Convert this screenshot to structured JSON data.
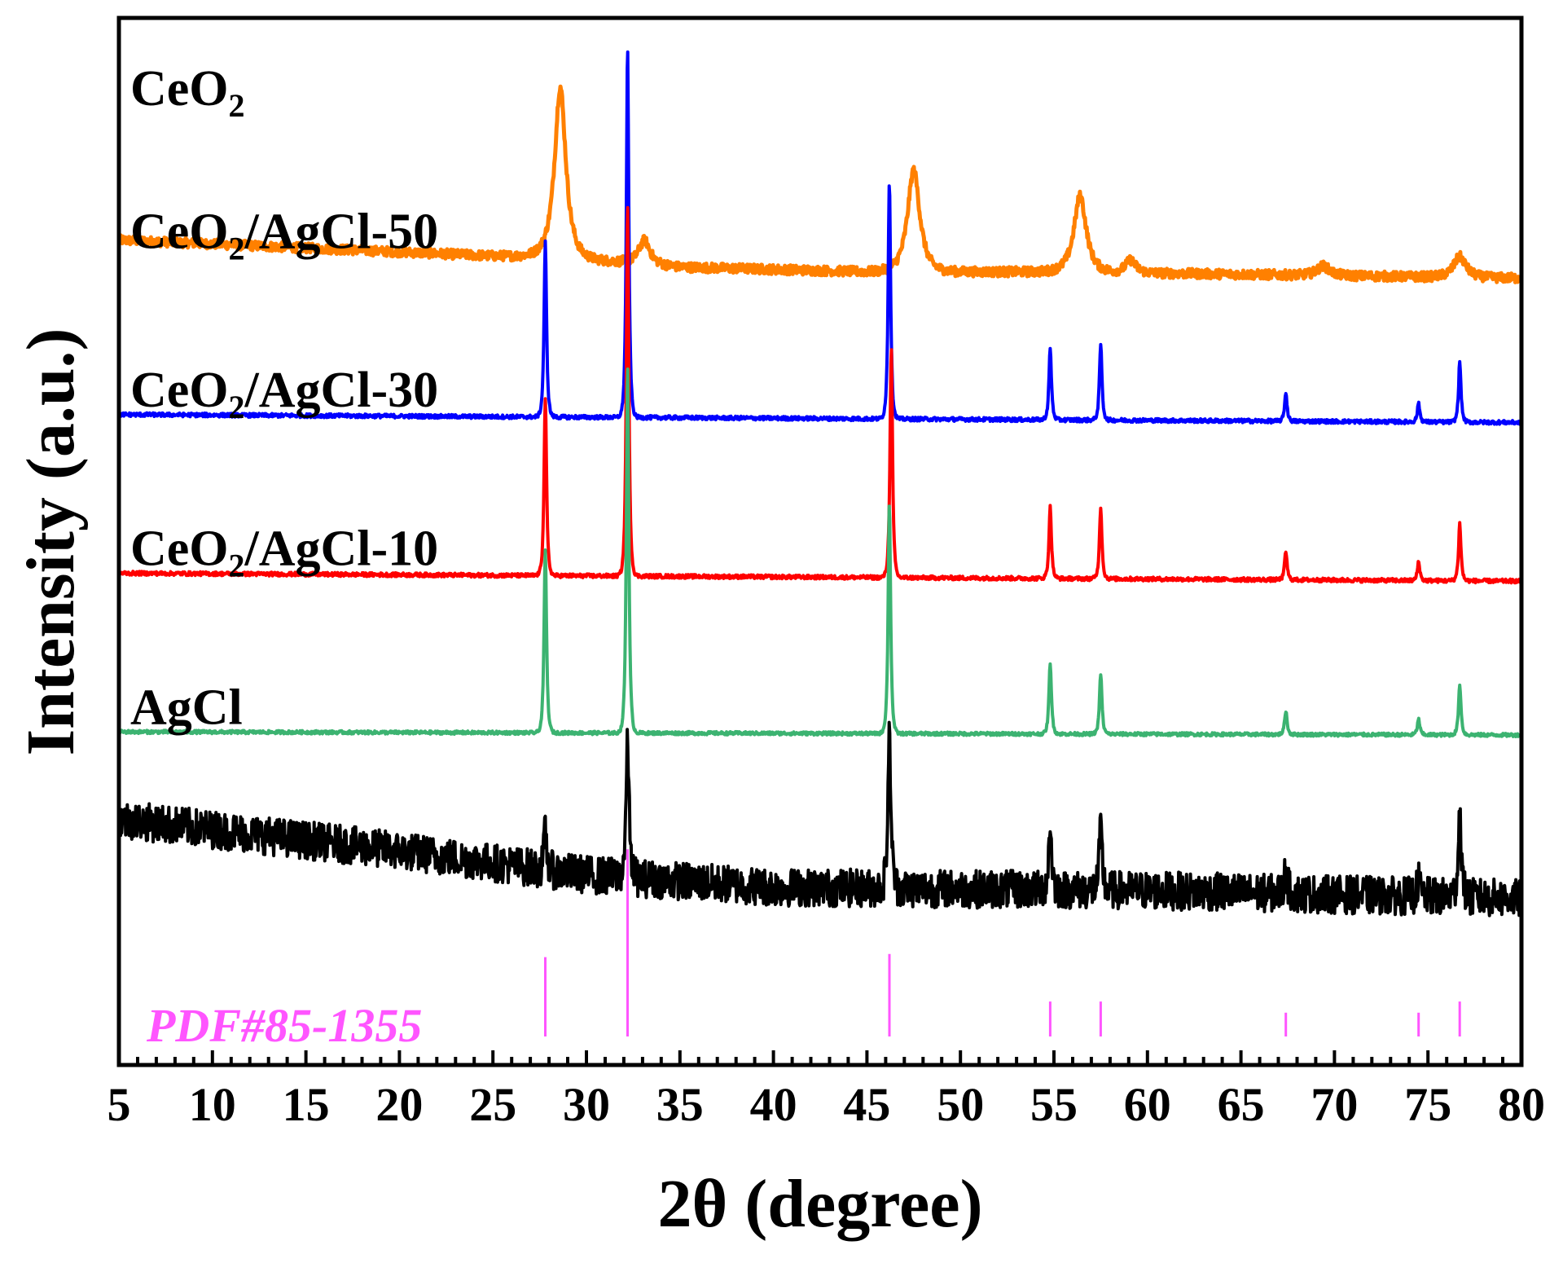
{
  "chart_data": {
    "type": "line",
    "xlabel": "2θ (degree)",
    "ylabel": "Intensity (a.u.)",
    "xlim": [
      5,
      80
    ],
    "x_ticks": [
      5,
      10,
      15,
      20,
      25,
      30,
      35,
      40,
      45,
      50,
      55,
      60,
      65,
      70,
      75,
      80
    ],
    "y_ticks_shown": false,
    "grid": false,
    "legend": "none",
    "series": [
      {
        "name": "CeO2",
        "label_main": "CeO",
        "label_sub": "2",
        "label_rest": "",
        "color": "#ff8000",
        "baseline": [
          [
            5,
            3.1
          ],
          [
            25,
            3.0
          ],
          [
            28,
            3.0
          ],
          [
            35,
            2.93
          ],
          [
            45,
            2.9
          ],
          [
            55,
            2.9
          ],
          [
            80,
            2.86
          ]
        ],
        "peaks": [
          {
            "center": 28.6,
            "height": 1.07,
            "width": 0.55
          },
          {
            "center": 33.1,
            "height": 0.15,
            "width": 0.55
          },
          {
            "center": 47.5,
            "height": 0.64,
            "width": 0.6
          },
          {
            "center": 56.4,
            "height": 0.48,
            "width": 0.6
          },
          {
            "center": 59.1,
            "height": 0.08,
            "width": 0.5
          },
          {
            "center": 69.4,
            "height": 0.06,
            "width": 0.6
          },
          {
            "center": 76.7,
            "height": 0.13,
            "width": 0.6
          }
        ],
        "noise": 0.03
      },
      {
        "name": "CeO2/AgCl-50",
        "label_main": "CeO",
        "label_sub": "2",
        "label_rest": "/AgCl-50",
        "color": "#0000ff",
        "baseline": [
          [
            5,
            2.0
          ],
          [
            80,
            1.95
          ]
        ],
        "peaks": [
          {
            "center": 27.8,
            "height": 1.1,
            "width": 0.12
          },
          {
            "center": 32.2,
            "height": 2.33,
            "width": 0.12
          },
          {
            "center": 46.2,
            "height": 1.5,
            "width": 0.12
          },
          {
            "center": 54.8,
            "height": 0.45,
            "width": 0.12
          },
          {
            "center": 57.5,
            "height": 0.48,
            "width": 0.12
          },
          {
            "center": 67.4,
            "height": 0.18,
            "width": 0.12
          },
          {
            "center": 74.5,
            "height": 0.12,
            "width": 0.12
          },
          {
            "center": 76.7,
            "height": 0.38,
            "width": 0.12
          }
        ],
        "noise": 0.012
      },
      {
        "name": "CeO2/AgCl-30",
        "label_main": "CeO",
        "label_sub": "2",
        "label_rest": "/AgCl-30",
        "color": "#ff0000",
        "baseline": [
          [
            5,
            1.0
          ],
          [
            80,
            0.95
          ]
        ],
        "peaks": [
          {
            "center": 27.8,
            "height": 1.12,
            "width": 0.12
          },
          {
            "center": 32.2,
            "height": 2.35,
            "width": 0.12
          },
          {
            "center": 46.3,
            "height": 1.45,
            "width": 0.12
          },
          {
            "center": 54.8,
            "height": 0.45,
            "width": 0.12
          },
          {
            "center": 57.5,
            "height": 0.45,
            "width": 0.12
          },
          {
            "center": 67.4,
            "height": 0.18,
            "width": 0.12
          },
          {
            "center": 74.5,
            "height": 0.12,
            "width": 0.12
          },
          {
            "center": 76.7,
            "height": 0.36,
            "width": 0.12
          }
        ],
        "noise": 0.012
      },
      {
        "name": "CeO2/AgCl-10",
        "label_main": "CeO",
        "label_sub": "2",
        "label_rest": "/AgCl-10",
        "color": "#3cb371",
        "baseline": [
          [
            5,
            0.0
          ],
          [
            80,
            -0.02
          ]
        ],
        "peaks": [
          {
            "center": 27.8,
            "height": 1.15,
            "width": 0.12
          },
          {
            "center": 32.2,
            "height": 2.33,
            "width": 0.12
          },
          {
            "center": 46.2,
            "height": 1.45,
            "width": 0.12
          },
          {
            "center": 54.8,
            "height": 0.45,
            "width": 0.12
          },
          {
            "center": 57.5,
            "height": 0.38,
            "width": 0.12
          },
          {
            "center": 67.4,
            "height": 0.15,
            "width": 0.12
          },
          {
            "center": 74.5,
            "height": 0.1,
            "width": 0.12
          },
          {
            "center": 76.7,
            "height": 0.32,
            "width": 0.12
          }
        ],
        "noise": 0.01
      },
      {
        "name": "AgCl",
        "label_main": "AgCl",
        "label_sub": "",
        "label_rest": "",
        "color": "#000000",
        "baseline": [
          [
            5,
            -0.55
          ],
          [
            20,
            -0.75
          ],
          [
            30,
            -0.9
          ],
          [
            40,
            -0.98
          ],
          [
            60,
            -1.0
          ],
          [
            80,
            -1.05
          ]
        ],
        "peaks": [
          {
            "center": 27.8,
            "height": 0.25,
            "width": 0.12
          },
          {
            "center": 32.2,
            "height": 0.85,
            "width": 0.15
          },
          {
            "center": 46.2,
            "height": 0.95,
            "width": 0.15
          },
          {
            "center": 54.8,
            "height": 0.4,
            "width": 0.15
          },
          {
            "center": 57.5,
            "height": 0.38,
            "width": 0.15
          },
          {
            "center": 67.4,
            "height": 0.15,
            "width": 0.15
          },
          {
            "center": 74.5,
            "height": 0.1,
            "width": 0.15
          },
          {
            "center": 76.7,
            "height": 0.55,
            "width": 0.15
          }
        ],
        "noise": 0.12
      }
    ],
    "reference": {
      "label": "PDF#85-1355",
      "color": "#ff55ff",
      "base": -1.92,
      "lines": [
        {
          "x": 27.8,
          "height": 0.5
        },
        {
          "x": 32.2,
          "height": 1.18
        },
        {
          "x": 46.2,
          "height": 0.52
        },
        {
          "x": 54.8,
          "height": 0.22
        },
        {
          "x": 57.5,
          "height": 0.22
        },
        {
          "x": 67.4,
          "height": 0.15
        },
        {
          "x": 74.5,
          "height": 0.15
        },
        {
          "x": 76.7,
          "height": 0.22
        }
      ]
    }
  }
}
